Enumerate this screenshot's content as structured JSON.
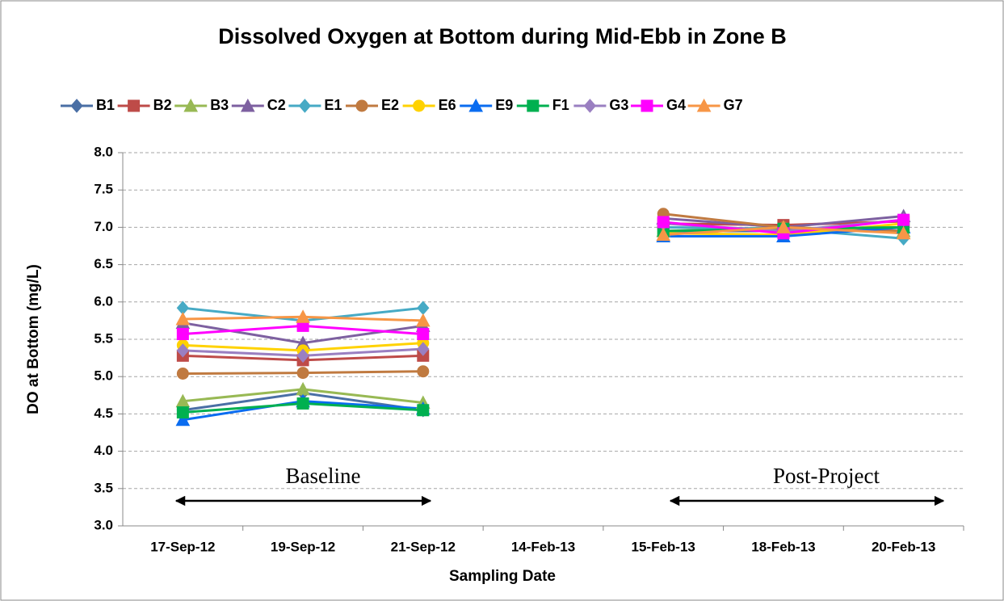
{
  "chart_data": {
    "type": "line",
    "title": "Dissolved Oxygen at Bottom during Mid-Ebb in Zone B",
    "x_label": "Sampling Date",
    "y_label": "DO at Bottom (mg/L)",
    "categories": [
      "17-Sep-12",
      "19-Sep-12",
      "21-Sep-12",
      "14-Feb-13",
      "15-Feb-13",
      "18-Feb-13",
      "20-Feb-13"
    ],
    "ylim": [
      3,
      8
    ],
    "yticks": [
      {
        "value": 3,
        "label": "3.0"
      },
      3.5,
      {
        "value": 4,
        "label": "4.0"
      },
      4.5,
      {
        "value": 5,
        "label": "5.0"
      },
      5.5,
      {
        "value": 6,
        "label": "6.0"
      },
      6.5,
      {
        "value": 7,
        "label": "7.0"
      },
      7.5,
      {
        "value": 8,
        "label": "8.0"
      }
    ],
    "grid": true,
    "legend": "top",
    "annotations": [
      "Baseline",
      "Post-Project"
    ],
    "series": [
      {
        "name": "B1",
        "color": "#4a6fa5",
        "marker": "diamond",
        "values": [
          4.55,
          4.78,
          4.55,
          null,
          6.95,
          6.95,
          7.0
        ]
      },
      {
        "name": "B2",
        "color": "#be4b48",
        "marker": "square",
        "values": [
          5.28,
          5.22,
          5.28,
          null,
          7.05,
          7.03,
          7.08
        ]
      },
      {
        "name": "B3",
        "color": "#98b954",
        "marker": "triangle",
        "values": [
          4.67,
          4.83,
          4.65,
          null,
          6.95,
          7.0,
          6.95
        ]
      },
      {
        "name": "C2",
        "color": "#7d60a0",
        "marker": "triangle",
        "values": [
          5.72,
          5.45,
          5.68,
          null,
          7.12,
          7.0,
          7.15
        ]
      },
      {
        "name": "E1",
        "color": "#46aac5",
        "marker": "diamond",
        "values": [
          5.92,
          5.75,
          5.92,
          null,
          7.0,
          6.98,
          6.85
        ]
      },
      {
        "name": "E2",
        "color": "#c07a40",
        "marker": "circle",
        "values": [
          5.04,
          5.05,
          5.07,
          null,
          7.18,
          7.0,
          6.95
        ]
      },
      {
        "name": "E6",
        "color": "#ffd200",
        "marker": "circle",
        "values": [
          5.42,
          5.35,
          5.45,
          null,
          6.92,
          6.9,
          7.05
        ]
      },
      {
        "name": "E9",
        "color": "#0a6cf0",
        "marker": "triangle",
        "values": [
          4.42,
          4.67,
          4.57,
          null,
          6.88,
          6.88,
          7.0
        ]
      },
      {
        "name": "F1",
        "color": "#00b050",
        "marker": "square",
        "values": [
          4.52,
          4.64,
          4.55,
          null,
          6.95,
          6.98,
          7.0
        ]
      },
      {
        "name": "G3",
        "color": "#9a7fc1",
        "marker": "diamond",
        "values": [
          5.35,
          5.28,
          5.37,
          null,
          7.05,
          6.95,
          7.1
        ]
      },
      {
        "name": "G4",
        "color": "#ff00ff",
        "marker": "square",
        "values": [
          5.57,
          5.68,
          5.57,
          null,
          7.07,
          6.92,
          7.1
        ]
      },
      {
        "name": "G7",
        "color": "#f79646",
        "marker": "triangle",
        "values": [
          5.77,
          5.8,
          5.75,
          null,
          6.9,
          7.0,
          6.92
        ]
      }
    ]
  }
}
